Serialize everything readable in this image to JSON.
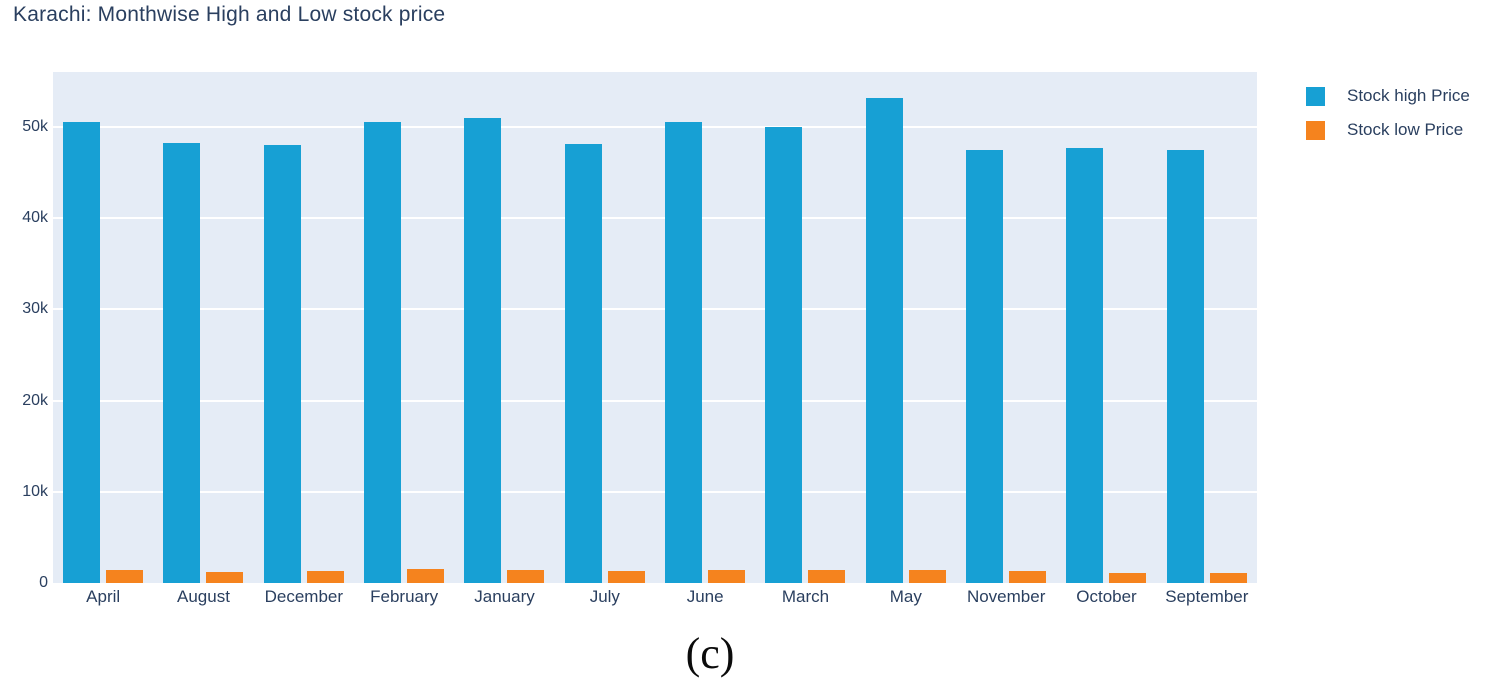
{
  "chart_data": {
    "type": "bar",
    "title": "Karachi: Monthwise High and Low stock price",
    "categories": [
      "April",
      "August",
      "December",
      "February",
      "January",
      "July",
      "June",
      "March",
      "May",
      "November",
      "October",
      "September"
    ],
    "series": [
      {
        "name": "Stock high Price",
        "color": "#17a0d4",
        "values": [
          50500,
          48200,
          48000,
          50500,
          51000,
          48100,
          50500,
          50000,
          53200,
          47500,
          47700,
          47500
        ]
      },
      {
        "name": "Stock low Price",
        "color": "#f5831e",
        "values": [
          1450,
          1250,
          1300,
          1550,
          1450,
          1300,
          1450,
          1400,
          1400,
          1300,
          1150,
          1050
        ]
      }
    ],
    "xlabel": "",
    "ylabel": "",
    "yticks": [
      {
        "value": 0,
        "label": "0"
      },
      {
        "value": 10000,
        "label": "10k"
      },
      {
        "value": 20000,
        "label": "20k"
      },
      {
        "value": 30000,
        "label": "30k"
      },
      {
        "value": 40000,
        "label": "40k"
      },
      {
        "value": 50000,
        "label": "50k"
      }
    ],
    "ylim": [
      0,
      56000
    ],
    "grid": true,
    "legend_position": "top-right",
    "colors": {
      "plot_background": "#e5ecf6",
      "grid_color": "#ffffff",
      "text_color": "#2a3f5f",
      "title_color": "#2a3f5f"
    }
  },
  "caption": "(c)"
}
